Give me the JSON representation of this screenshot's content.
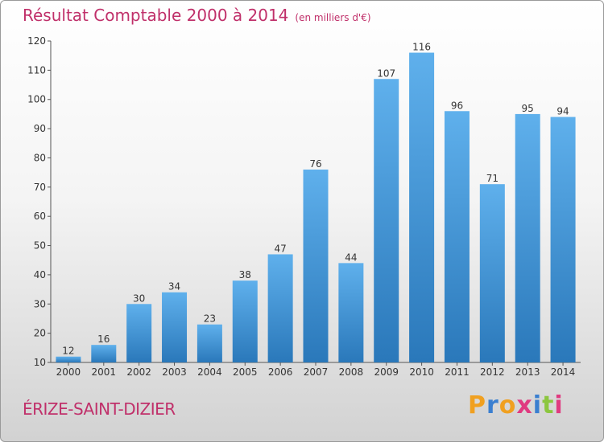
{
  "header": {
    "title": "Résultat Comptable 2000 à 2014",
    "subtitle": "(en milliers d'€)"
  },
  "commune": "ÉRIZE-SAINT-DIZIER",
  "logo": {
    "text": "Proxiti",
    "letter_colors": [
      "#f0a020",
      "#3a7fd0",
      "#f0a020",
      "#e03a80",
      "#3a7fd0",
      "#8cc63f",
      "#e03a80"
    ]
  },
  "chart_data": {
    "type": "bar",
    "title": "Résultat Comptable 2000 à 2014",
    "subtitle": "(en milliers d'€)",
    "categories": [
      "2000",
      "2001",
      "2002",
      "2003",
      "2004",
      "2005",
      "2006",
      "2007",
      "2008",
      "2009",
      "2010",
      "2011",
      "2012",
      "2013",
      "2014"
    ],
    "values": [
      12,
      16,
      30,
      34,
      23,
      38,
      47,
      76,
      44,
      107,
      116,
      96,
      71,
      95,
      94
    ],
    "xlabel": "",
    "ylabel": "",
    "ylim": [
      10,
      120
    ],
    "yticks": [
      10,
      20,
      30,
      40,
      50,
      60,
      70,
      80,
      90,
      100,
      110,
      120
    ],
    "grid": false,
    "bar_color_top": "#5fb0ec",
    "bar_color_bottom": "#2a78ba"
  }
}
